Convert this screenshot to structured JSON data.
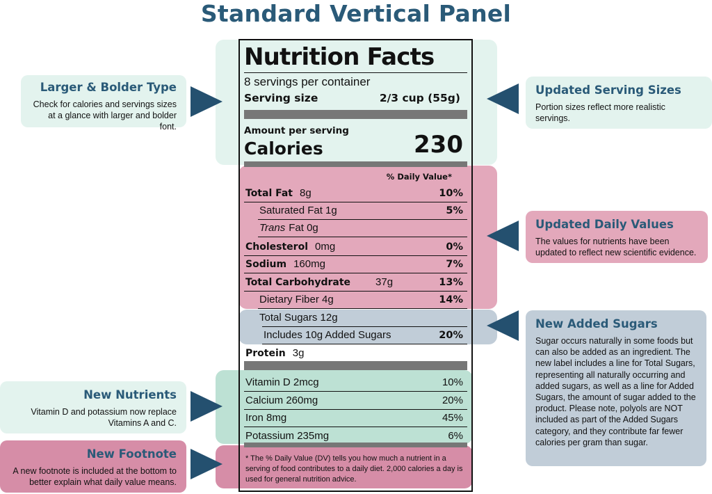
{
  "title": "Standard Vertical Panel",
  "callouts": {
    "larger_type": {
      "heading": "Larger & Bolder Type",
      "body": "Check for calories and servings sizes at a glance with larger and bolder font."
    },
    "serving_sizes": {
      "heading": "Updated Serving Sizes",
      "body": "Portion sizes reflect more realistic servings."
    },
    "daily_values": {
      "heading": "Updated Daily Values",
      "body": "The values for nutrients have been updated to reflect new scientific evidence."
    },
    "added_sugars": {
      "heading": "New Added Sugars",
      "body": "Sugar occurs naturally in some foods but can also be added as an ingredient. The new label includes a line for Total Sugars, representing all naturally occurring and added sugars, as well as a line for Added Sugars, the amount of sugar added to the product. Please note, polyols are NOT included as part of the Added Sugars category, and they contribute far fewer calories per gram than sugar."
    },
    "new_nutrients": {
      "heading": "New Nutrients",
      "body": "Vitamin D and potassium now replace Vitamins A and C."
    },
    "new_footnote": {
      "heading": "New Footnote",
      "body": "A new footnote is included at the bottom to better explain what daily value means."
    }
  },
  "label": {
    "title": "Nutrition Facts",
    "servings": "8 servings per container",
    "serving_size_label": "Serving size",
    "serving_size_value": "2/3 cup (55g)",
    "amount_per_serving": "Amount per serving",
    "calories_label": "Calories",
    "calories_value": "230",
    "dv_header": "% Daily Value*",
    "nutrients": [
      {
        "bold": "Total Fat",
        "text": "8g",
        "dv": "10%"
      },
      {
        "bold": "",
        "text": "Saturated Fat 1g",
        "dv": "5%"
      },
      {
        "italic": "Trans",
        "text": "Fat 0g",
        "dv": ""
      },
      {
        "bold": "Cholesterol",
        "text": "0mg",
        "dv": "0%"
      },
      {
        "bold": "Sodium",
        "text": "160mg",
        "dv": "7%"
      },
      {
        "bold": "Total Carbohydrate",
        "text": "37g",
        "dv": "13%"
      },
      {
        "bold": "",
        "text": "Dietary Fiber 4g",
        "dv": "14%"
      },
      {
        "bold": "",
        "text": "Total Sugars 12g",
        "dv": ""
      },
      {
        "bold": "",
        "text": "Includes 10g Added Sugars",
        "dv": "20%"
      },
      {
        "bold": "Protein",
        "text": "3g",
        "dv": ""
      }
    ],
    "vitamins": [
      {
        "text": "Vitamin D 2mcg",
        "dv": "10%"
      },
      {
        "text": "Calcium 260mg",
        "dv": "20%"
      },
      {
        "text": "Iron 8mg",
        "dv": "45%"
      },
      {
        "text": "Potassium 235mg",
        "dv": "6%"
      }
    ],
    "footnote": "* The % Daily Value (DV) tells you how much a nutrient in a serving of food contributes to a daily diet. 2,000 calories a day is used for general nutrition advice."
  },
  "colors": {
    "heading": "#2a5a78",
    "arrow": "#24506f",
    "mint": "#e3f3ee",
    "pink": "#e3a8bb",
    "blue": "#c1cdd8",
    "green": "#bde1d4",
    "rose": "#d68da7"
  }
}
